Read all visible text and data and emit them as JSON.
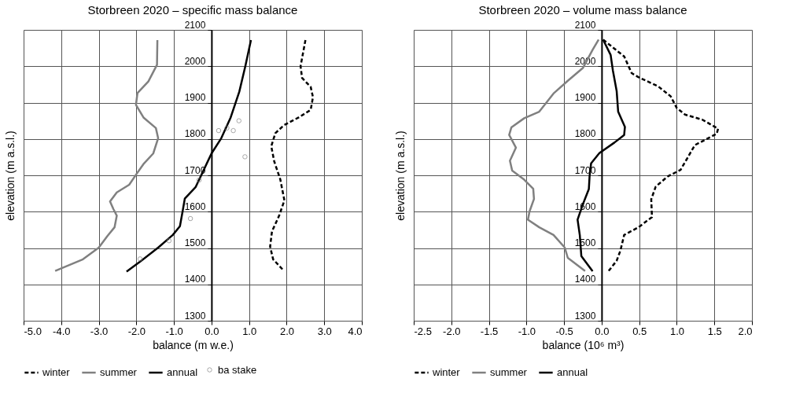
{
  "chart_data": [
    {
      "type": "line",
      "title": "Storbreen 2020 – specific mass balance",
      "xlabel": "balance (m w.e.)",
      "ylabel": "elevation (m a.s.l.)",
      "xlim": [
        -5,
        4
      ],
      "xticks": [
        {
          "value": -5,
          "label": "-5.0"
        },
        {
          "value": -4,
          "label": "-4.0"
        },
        {
          "value": -3,
          "label": "-3.0"
        },
        {
          "value": -2,
          "label": "-2.0"
        },
        {
          "value": -1,
          "label": "-1.0"
        },
        {
          "value": 0,
          "label": "0.0"
        },
        {
          "value": 1,
          "label": "1.0"
        },
        {
          "value": 2,
          "label": "2.0"
        },
        {
          "value": 3,
          "label": "3.0"
        },
        {
          "value": 4,
          "label": "4.0"
        }
      ],
      "ylim": [
        1300,
        2100
      ],
      "yticks": [
        1300,
        1400,
        1500,
        1600,
        1700,
        1800,
        1900,
        2000,
        2100
      ],
      "grid": true,
      "legend": "bottom",
      "series": [
        {
          "name": "winter",
          "color": "#000000",
          "line_style": "dashed",
          "x": [
            2.5,
            2.37,
            2.41,
            2.64,
            2.7,
            2.64,
            2.32,
            1.93,
            1.7,
            1.59,
            1.67,
            1.83,
            1.94,
            1.8,
            1.61,
            1.56,
            1.64,
            1.93
          ],
          "values": [
            2072,
            2000,
            1968,
            1943,
            1915,
            1880,
            1859,
            1838,
            1816,
            1780,
            1738,
            1689,
            1631,
            1589,
            1546,
            1504,
            1469,
            1437
          ]
        },
        {
          "name": "summer",
          "color": "#808080",
          "line_style": "solid",
          "x": [
            -1.44,
            -1.45,
            -1.68,
            -1.97,
            -2.01,
            -1.81,
            -1.48,
            -1.42,
            -1.55,
            -1.81,
            -2.0,
            -2.19,
            -2.52,
            -2.7,
            -2.61,
            -2.52,
            -2.58,
            -2.77,
            -3.0,
            -3.42,
            -4.16
          ],
          "values": [
            2072,
            2004,
            1958,
            1926,
            1894,
            1859,
            1830,
            1802,
            1760,
            1731,
            1703,
            1674,
            1653,
            1628,
            1607,
            1589,
            1557,
            1533,
            1501,
            1469,
            1437
          ]
        },
        {
          "name": "annual",
          "color": "#000000",
          "line_style": "solid",
          "x": [
            -2.26,
            -1.87,
            -1.42,
            -1.03,
            -0.84,
            -0.77,
            -0.71,
            -0.42,
            -0.26,
            0.0,
            0.26,
            0.51,
            0.74,
            0.9,
            1.05
          ],
          "values": [
            1435,
            1465,
            1501,
            1536,
            1560,
            1600,
            1636,
            1668,
            1703,
            1760,
            1802,
            1859,
            1930,
            2000,
            2072
          ]
        },
        {
          "name": "ba stake",
          "type": "scatter",
          "marker": "circle",
          "color": "#808080",
          "x": [
            0.19,
            0.41,
            0.58,
            0.73,
            0.89,
            -0.33,
            -0.56,
            -1.13,
            -1.9
          ],
          "values": [
            1823,
            1830,
            1823,
            1850,
            1751,
            1687,
            1581,
            1520,
            1470
          ]
        }
      ]
    },
    {
      "type": "line",
      "title": "Storbreen 2020 – volume mass balance",
      "xlabel": "balance (10⁶ m³)",
      "ylabel": "elevation (m a.s.l.)",
      "xlim": [
        -2.5,
        2.0
      ],
      "xticks": [
        {
          "value": -2.5,
          "label": "-2.5"
        },
        {
          "value": -2,
          "label": "-2.0"
        },
        {
          "value": -1.5,
          "label": "-1.5"
        },
        {
          "value": -1,
          "label": "-1.0"
        },
        {
          "value": -0.5,
          "label": "-0.5"
        },
        {
          "value": 0,
          "label": "0.0"
        },
        {
          "value": 0.5,
          "label": "0.5"
        },
        {
          "value": 1,
          "label": "1.0"
        },
        {
          "value": 1.5,
          "label": "1.5"
        },
        {
          "value": 2,
          "label": "2.0"
        }
      ],
      "ylim": [
        1300,
        2100
      ],
      "yticks": [
        1300,
        1400,
        1500,
        1600,
        1700,
        1800,
        1900,
        2000,
        2100
      ],
      "grid": true,
      "legend": "bottom",
      "series": [
        {
          "name": "winter",
          "color": "#000000",
          "line_style": "dashed",
          "x": [
            0.02,
            0.3,
            0.4,
            0.49,
            0.75,
            0.92,
            1.0,
            1.11,
            1.34,
            1.55,
            1.53,
            1.24,
            1.14,
            1.05,
            0.88,
            0.72,
            0.66,
            0.67,
            0.49,
            0.3,
            0.25,
            0.2,
            0.09
          ],
          "values": [
            2073,
            2027,
            1981,
            1970,
            1945,
            1917,
            1885,
            1867,
            1853,
            1828,
            1814,
            1783,
            1747,
            1715,
            1697,
            1669,
            1634,
            1585,
            1557,
            1536,
            1493,
            1465,
            1436
          ]
        },
        {
          "name": "summer",
          "color": "#808080",
          "line_style": "solid",
          "x": [
            -0.04,
            -0.12,
            -0.25,
            -0.45,
            -0.64,
            -0.83,
            -1.03,
            -1.2,
            -1.23,
            -1.14,
            -1.22,
            -1.19,
            -1.03,
            -0.91,
            -0.9,
            -0.96,
            -0.98,
            -0.83,
            -0.64,
            -0.49,
            -0.45,
            -0.22
          ],
          "values": [
            2073,
            2045,
            1995,
            1960,
            1925,
            1875,
            1857,
            1832,
            1811,
            1776,
            1740,
            1713,
            1688,
            1663,
            1635,
            1600,
            1578,
            1557,
            1536,
            1501,
            1473,
            1437
          ]
        },
        {
          "name": "annual",
          "color": "#000000",
          "line_style": "solid",
          "x": [
            0.02,
            0.12,
            0.15,
            0.2,
            0.22,
            0.31,
            0.3,
            0.17,
            -0.03,
            -0.14,
            -0.16,
            -0.17,
            -0.25,
            -0.32,
            -0.29,
            -0.27,
            -0.12
          ],
          "values": [
            2073,
            2031,
            1988,
            1932,
            1875,
            1833,
            1811,
            1790,
            1761,
            1733,
            1698,
            1662,
            1620,
            1578,
            1535,
            1478,
            1436
          ]
        }
      ]
    }
  ]
}
